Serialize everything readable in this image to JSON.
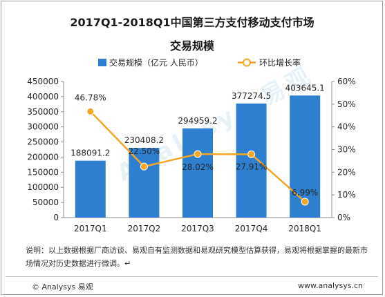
{
  "chart_data": {
    "type": "bar",
    "title_line1": "2017Q1-2018Q1中国第三方支付移动支付市场",
    "title_line2": "交易规模",
    "categories": [
      "2017Q1",
      "2017Q2",
      "2017Q3",
      "2017Q4",
      "2018Q1"
    ],
    "series": [
      {
        "name": "交易规模（亿元 人民币）",
        "type": "bar",
        "axis": "left",
        "values": [
          188091.2,
          230408.2,
          294959.2,
          377274.5,
          403645.1
        ],
        "labels": [
          "188091.2",
          "230408.2",
          "294959.2",
          "377274.5",
          "403645.1"
        ],
        "color": "#2f7fd1"
      },
      {
        "name": "环比增长率",
        "type": "line",
        "axis": "right",
        "values": [
          46.78,
          22.5,
          28.02,
          27.91,
          6.99
        ],
        "labels": [
          "46.78%",
          "22.50%",
          "28.02%",
          "27.91%",
          "6.99%"
        ],
        "color": "#f5a623"
      }
    ],
    "y_left": {
      "ylim": [
        0,
        450000
      ],
      "ticks": [
        "0",
        "50000",
        "100000",
        "150000",
        "200000",
        "250000",
        "300000",
        "350000",
        "400000",
        "450000"
      ]
    },
    "y_right": {
      "ylim": [
        0,
        60
      ],
      "ticks": [
        "0%",
        "10%",
        "20%",
        "30%",
        "40%",
        "50%",
        "60%"
      ]
    },
    "legend_position": "top",
    "grid": false
  },
  "note": "说明：以上数据根据厂商访谈、易观自有监测数据和易观研究模型估算获得，易观将根据掌握的最新市场情况对历史数据进行微调。↵",
  "footer": {
    "left": "© Analysys 易观",
    "right": "www.analysys.cn"
  },
  "watermark": "Analysys 易观"
}
